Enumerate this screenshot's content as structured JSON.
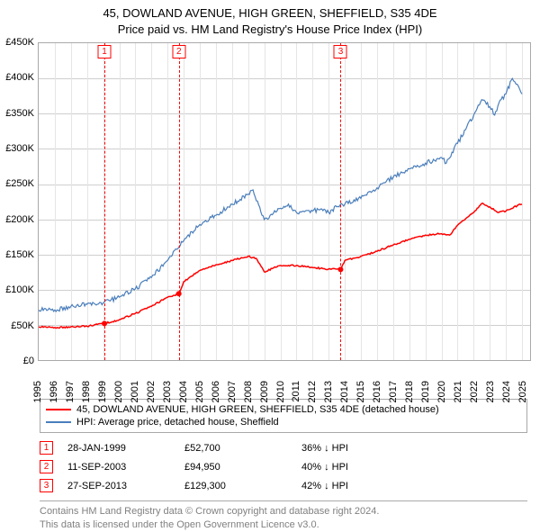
{
  "title": {
    "line1": "45, DOWLAND AVENUE, HIGH GREEN, SHEFFIELD, S35 4DE",
    "line2": "Price paid vs. HM Land Registry's House Price Index (HPI)"
  },
  "chart": {
    "type": "line",
    "background_color": "#ffffff",
    "border_color": "#a9a9a9",
    "grid_color_h": "#cfcfcf",
    "grid_color_v": "#e5e5e5",
    "y_axis": {
      "min": 0,
      "max": 450,
      "tick_step": 50,
      "labels": [
        "£0",
        "£50K",
        "£100K",
        "£150K",
        "£200K",
        "£250K",
        "£300K",
        "£350K",
        "£400K",
        "£450K"
      ],
      "label_fontsize": 11
    },
    "x_axis": {
      "min": 1995,
      "max": 2025.5,
      "labels": [
        "1995",
        "1996",
        "1997",
        "1998",
        "1999",
        "2000",
        "2001",
        "2002",
        "2003",
        "2004",
        "2005",
        "2006",
        "2007",
        "2008",
        "2009",
        "2010",
        "2011",
        "2012",
        "2013",
        "2014",
        "2015",
        "2016",
        "2017",
        "2018",
        "2019",
        "2020",
        "2021",
        "2022",
        "2023",
        "2024",
        "2025"
      ],
      "label_fontsize": 11,
      "label_rotation": -90
    },
    "series": [
      {
        "key": "property",
        "label": "45, DOWLAND AVENUE, HIGH GREEN, SHEFFIELD, S35 4DE (detached house)",
        "color": "#ff0000",
        "width": 1.5,
        "points": [
          [
            1995.0,
            48
          ],
          [
            1996.0,
            47
          ],
          [
            1997.0,
            48
          ],
          [
            1998.0,
            49
          ],
          [
            1999.08,
            52.7
          ],
          [
            2000.0,
            58
          ],
          [
            2001.0,
            67
          ],
          [
            2002.0,
            77
          ],
          [
            2003.0,
            90
          ],
          [
            2003.7,
            94.95
          ],
          [
            2004.0,
            112
          ],
          [
            2005.0,
            128
          ],
          [
            2006.0,
            136
          ],
          [
            2007.0,
            142
          ],
          [
            2008.0,
            148
          ],
          [
            2008.5,
            145
          ],
          [
            2009.0,
            126
          ],
          [
            2010.0,
            135
          ],
          [
            2011.0,
            135
          ],
          [
            2012.0,
            132
          ],
          [
            2013.0,
            130
          ],
          [
            2013.74,
            129.3
          ],
          [
            2014.0,
            142
          ],
          [
            2015.0,
            148
          ],
          [
            2016.0,
            155
          ],
          [
            2017.0,
            164
          ],
          [
            2018.0,
            172
          ],
          [
            2019.0,
            178
          ],
          [
            2020.0,
            180
          ],
          [
            2020.5,
            178
          ],
          [
            2021.0,
            192
          ],
          [
            2022.0,
            210
          ],
          [
            2022.5,
            223
          ],
          [
            2023.0,
            218
          ],
          [
            2023.5,
            210
          ],
          [
            2024.0,
            212
          ],
          [
            2024.5,
            218
          ],
          [
            2025.0,
            222
          ]
        ]
      },
      {
        "key": "hpi",
        "label": "HPI: Average price, detached house, Sheffield",
        "color": "#4a7ebb",
        "width": 1.2,
        "points": [
          [
            1995.0,
            72
          ],
          [
            1996.0,
            72
          ],
          [
            1997.0,
            77
          ],
          [
            1998.0,
            80
          ],
          [
            1999.0,
            82
          ],
          [
            2000.0,
            90
          ],
          [
            2001.0,
            102
          ],
          [
            2002.0,
            118
          ],
          [
            2003.0,
            142
          ],
          [
            2004.0,
            170
          ],
          [
            2005.0,
            193
          ],
          [
            2006.0,
            206
          ],
          [
            2007.0,
            222
          ],
          [
            2008.0,
            236
          ],
          [
            2008.3,
            242
          ],
          [
            2009.0,
            200
          ],
          [
            2009.5,
            207
          ],
          [
            2010.0,
            216
          ],
          [
            2010.5,
            222
          ],
          [
            2011.0,
            210
          ],
          [
            2012.0,
            212
          ],
          [
            2012.5,
            215
          ],
          [
            2013.0,
            210
          ],
          [
            2013.5,
            218
          ],
          [
            2014.0,
            222
          ],
          [
            2015.0,
            230
          ],
          [
            2016.0,
            245
          ],
          [
            2017.0,
            260
          ],
          [
            2018.0,
            272
          ],
          [
            2019.0,
            280
          ],
          [
            2020.0,
            288
          ],
          [
            2020.3,
            280
          ],
          [
            2021.0,
            308
          ],
          [
            2022.0,
            348
          ],
          [
            2022.5,
            370
          ],
          [
            2023.0,
            360
          ],
          [
            2023.3,
            348
          ],
          [
            2023.7,
            370
          ],
          [
            2024.0,
            378
          ],
          [
            2024.4,
            400
          ],
          [
            2025.0,
            378
          ]
        ]
      }
    ],
    "events": [
      {
        "n": "1",
        "year": 1999.08,
        "color": "#ff0000"
      },
      {
        "n": "2",
        "year": 2003.7,
        "color": "#ff0000"
      },
      {
        "n": "3",
        "year": 2013.74,
        "color": "#ff0000"
      }
    ]
  },
  "legend": {
    "items": [
      {
        "color": "#ff0000",
        "label": "45, DOWLAND AVENUE, HIGH GREEN, SHEFFIELD, S35 4DE (detached house)"
      },
      {
        "color": "#4a7ebb",
        "label": "HPI: Average price, detached house, Sheffield"
      }
    ]
  },
  "event_rows": [
    {
      "n": "1",
      "color": "#ff0000",
      "date": "28-JAN-1999",
      "price": "£52,700",
      "delta": "36% ↓ HPI"
    },
    {
      "n": "2",
      "color": "#ff0000",
      "date": "11-SEP-2003",
      "price": "£94,950",
      "delta": "40% ↓ HPI"
    },
    {
      "n": "3",
      "color": "#ff0000",
      "date": "27-SEP-2013",
      "price": "£129,300",
      "delta": "42% ↓ HPI"
    }
  ],
  "footer": {
    "line1": "Contains HM Land Registry data © Crown copyright and database right 2024.",
    "line2": "This data is licensed under the Open Government Licence v3.0."
  }
}
